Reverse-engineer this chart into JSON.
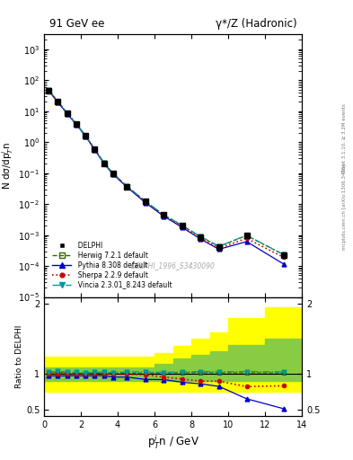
{
  "title_left": "91 GeV ee",
  "title_right": "γ*/Z (Hadronic)",
  "ylabel_main": "N dσ/dp$_T^i$n",
  "ylabel_ratio": "Ratio to DELPHI",
  "xlabel": "p$_T^i$n / GeV",
  "watermark": "DELPHI_1996_S3430090",
  "right_label": "Rivet 3.1.10, ≥ 3.2M events        mcplots.cern.ch [arXiv:1306.3436]",
  "delphi_x": [
    0.25,
    0.75,
    1.25,
    1.75,
    2.25,
    2.75,
    3.25,
    3.75,
    4.5,
    5.5,
    6.5,
    7.5,
    8.5,
    9.5,
    11.0,
    13.0
  ],
  "delphi_y": [
    46.0,
    20.0,
    8.5,
    3.8,
    1.6,
    0.58,
    0.21,
    0.095,
    0.037,
    0.012,
    0.0044,
    0.002,
    0.00086,
    0.00042,
    0.00095,
    0.00023
  ],
  "delphi_yerr": [
    2.0,
    1.0,
    0.4,
    0.2,
    0.08,
    0.03,
    0.011,
    0.005,
    0.002,
    0.0007,
    0.00024,
    0.00011,
    5e-05,
    3e-05,
    0.0001,
    3e-05
  ],
  "herwig_y": [
    47.0,
    20.5,
    8.65,
    3.85,
    1.62,
    0.588,
    0.213,
    0.096,
    0.0375,
    0.0122,
    0.00448,
    0.00204,
    0.000878,
    0.000428,
    0.000967,
    0.000234
  ],
  "pythia_y": [
    45.0,
    19.5,
    8.3,
    3.72,
    1.56,
    0.567,
    0.206,
    0.091,
    0.0355,
    0.0111,
    0.00406,
    0.00177,
    0.000742,
    0.000347,
    0.000617,
    0.000117
  ],
  "sherpa_y": [
    46.5,
    20.2,
    8.6,
    3.82,
    1.61,
    0.584,
    0.212,
    0.095,
    0.037,
    0.0119,
    0.00422,
    0.00186,
    0.000774,
    0.000378,
    0.000782,
    0.000192
  ],
  "vincia_y": [
    47.5,
    20.8,
    8.8,
    3.9,
    1.64,
    0.595,
    0.217,
    0.097,
    0.0382,
    0.0124,
    0.00451,
    0.00207,
    0.00089,
    0.000435,
    0.000985,
    0.000238
  ],
  "herwig_ratio": [
    1.02,
    1.025,
    1.018,
    1.013,
    1.012,
    1.014,
    1.014,
    1.011,
    1.014,
    1.017,
    1.018,
    1.02,
    1.021,
    1.019,
    1.018,
    1.017
  ],
  "pythia_ratio": [
    0.978,
    0.975,
    0.976,
    0.979,
    0.975,
    0.978,
    0.981,
    0.958,
    0.959,
    0.925,
    0.923,
    0.885,
    0.863,
    0.826,
    0.65,
    0.509
  ],
  "sherpa_ratio": [
    1.011,
    1.01,
    1.012,
    1.005,
    1.006,
    1.007,
    1.01,
    1.0,
    1.0,
    0.992,
    0.959,
    0.93,
    0.9,
    0.9,
    0.823,
    0.835
  ],
  "vincia_ratio": [
    1.033,
    1.04,
    1.035,
    1.026,
    1.025,
    1.026,
    1.033,
    1.021,
    1.032,
    1.033,
    1.025,
    1.035,
    1.035,
    1.036,
    1.037,
    1.034
  ],
  "band_x_edges": [
    0.0,
    0.5,
    1.0,
    1.5,
    2.0,
    2.5,
    3.0,
    3.5,
    4.0,
    5.0,
    6.0,
    7.0,
    8.0,
    9.0,
    10.0,
    12.0,
    14.0
  ],
  "band_yellow_lo": [
    0.75,
    0.75,
    0.75,
    0.75,
    0.75,
    0.75,
    0.75,
    0.75,
    0.75,
    0.75,
    0.75,
    0.75,
    0.75,
    0.75,
    0.75,
    0.75
  ],
  "band_yellow_hi": [
    1.25,
    1.25,
    1.25,
    1.25,
    1.25,
    1.25,
    1.25,
    1.25,
    1.25,
    1.25,
    1.3,
    1.4,
    1.5,
    1.6,
    1.8,
    1.95
  ],
  "band_green_lo": [
    0.9,
    0.9,
    0.9,
    0.9,
    0.9,
    0.9,
    0.9,
    0.9,
    0.9,
    0.9,
    0.9,
    0.9,
    0.9,
    0.9,
    0.9,
    0.9
  ],
  "band_green_hi": [
    1.1,
    1.1,
    1.1,
    1.1,
    1.1,
    1.1,
    1.1,
    1.1,
    1.1,
    1.1,
    1.15,
    1.22,
    1.27,
    1.33,
    1.42,
    1.5
  ],
  "colors": {
    "delphi": "#000000",
    "herwig": "#336600",
    "pythia": "#0000cc",
    "sherpa": "#cc0000",
    "vincia": "#009999"
  },
  "ylim_main": [
    1e-05,
    3000.0
  ],
  "ylim_ratio": [
    0.4,
    2.1
  ],
  "xlim": [
    0,
    14
  ],
  "xticks": [
    0,
    2,
    4,
    6,
    8,
    10,
    12,
    14
  ]
}
